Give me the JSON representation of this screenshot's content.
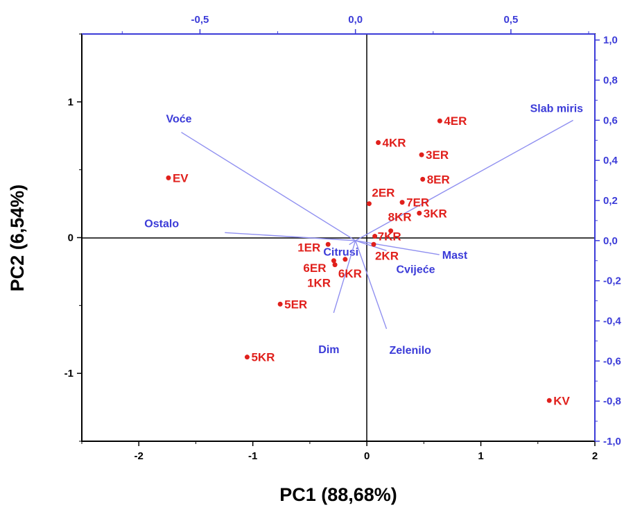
{
  "chart_data": {
    "type": "scatter",
    "subtype": "biplot",
    "xlabel": "PC1 (88,68%)",
    "ylabel": "PC2 (6,54%)",
    "xlim": [
      -2.5,
      2
    ],
    "ylim": [
      -1.5,
      1.5
    ],
    "x_ticks": [
      "-2",
      "-1",
      "0",
      "1",
      "2"
    ],
    "x_tick_values": [
      -2,
      -1,
      0,
      1,
      2
    ],
    "y_ticks": [
      "-1",
      "0",
      "1"
    ],
    "y_tick_values": [
      -1,
      0,
      1
    ],
    "top_axis": {
      "lim": [
        -0.88,
        0.77
      ],
      "ticks": [
        "-0,5",
        "0,0",
        "0,5"
      ],
      "tick_values": [
        -0.5,
        0,
        0.5
      ]
    },
    "right_axis": {
      "lim": [
        -1.0,
        1.03
      ],
      "ticks": [
        "1,0",
        "0,8",
        "0,6",
        "0,4",
        "0,2",
        "0,0",
        "-0,2",
        "-0,4",
        "-0,6",
        "-0,8",
        "-1,0"
      ],
      "tick_values": [
        1.0,
        0.8,
        0.6,
        0.4,
        0.2,
        0.0,
        -0.2,
        -0.4,
        -0.6,
        -0.8,
        -1.0
      ]
    },
    "point_color": "#e0201c",
    "loading_color": "#3b3bd8",
    "points": [
      {
        "label": "EV",
        "x": -1.74,
        "y": 0.44
      },
      {
        "label": "4ER",
        "x": 0.64,
        "y": 0.86
      },
      {
        "label": "4KR",
        "x": 0.1,
        "y": 0.7
      },
      {
        "label": "3ER",
        "x": 0.48,
        "y": 0.61
      },
      {
        "label": "8ER",
        "x": 0.49,
        "y": 0.43
      },
      {
        "label": "2ER",
        "x": 0.02,
        "y": 0.25
      },
      {
        "label": "7ER",
        "x": 0.31,
        "y": 0.26
      },
      {
        "label": "3KR",
        "x": 0.46,
        "y": 0.18
      },
      {
        "label": "8KR",
        "x": 0.21,
        "y": 0.05
      },
      {
        "label": "7KR",
        "x": 0.07,
        "y": 0.01
      },
      {
        "label": "2KR",
        "x": 0.06,
        "y": -0.05
      },
      {
        "label": "1ER",
        "x": -0.34,
        "y": -0.05
      },
      {
        "label": "6ER",
        "x": -0.29,
        "y": -0.17
      },
      {
        "label": "6KR",
        "x": -0.19,
        "y": -0.16
      },
      {
        "label": "1KR",
        "x": -0.28,
        "y": -0.2
      },
      {
        "label": "5ER",
        "x": -0.76,
        "y": -0.49
      },
      {
        "label": "5KR",
        "x": -1.05,
        "y": -0.88
      },
      {
        "label": "KV",
        "x": 1.6,
        "y": -1.2
      }
    ],
    "loadings": [
      {
        "label": "Slab miris",
        "x": 0.7,
        "y": 0.6
      },
      {
        "label": "Voće",
        "x": -0.56,
        "y": 0.54
      },
      {
        "label": "Ostalo",
        "x": -0.42,
        "y": 0.04
      },
      {
        "label": "Mast",
        "x": 0.27,
        "y": -0.07
      },
      {
        "label": "Cvijeće",
        "x": 0.1,
        "y": -0.05
      },
      {
        "label": "Citrusi",
        "x": -0.02,
        "y": -0.02
      },
      {
        "label": "Dim",
        "x": -0.07,
        "y": -0.36
      },
      {
        "label": "Zelenilo",
        "x": 0.1,
        "y": -0.44
      }
    ]
  }
}
